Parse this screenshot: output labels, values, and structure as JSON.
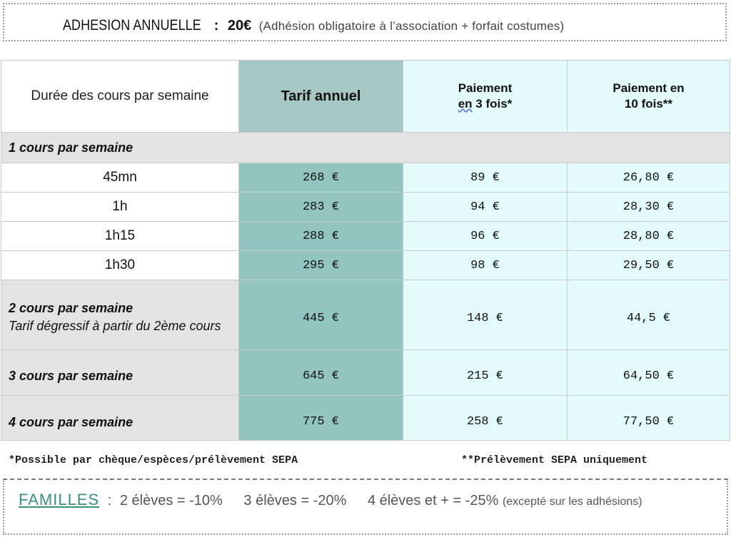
{
  "header": {
    "label": "ADHESION ANNUELLE",
    "separator": ":",
    "amount": "20€",
    "note": "(Adhésion obligatoire à l’association + forfait costumes)"
  },
  "table": {
    "columns": {
      "duration": "Durée des cours par semaine",
      "annual": "Tarif annuel",
      "pay3_line1": "Paiement",
      "pay3_pre": "en",
      "pay3_rest": " 3 fois*",
      "pay10_line1": "Paiement en",
      "pay10_line2": "10 fois**"
    },
    "section1": "1 cours par semaine",
    "rows": [
      {
        "duration": "45mn",
        "annual": "268 €",
        "pay3": "89 €",
        "pay10": "26,80 €"
      },
      {
        "duration": "1h",
        "annual": "283 €",
        "pay3": "94 €",
        "pay10": "28,30 €"
      },
      {
        "duration": "1h15",
        "annual": "288 €",
        "pay3": "96 €",
        "pay10": "28,80 €"
      },
      {
        "duration": "1h30",
        "annual": "295 €",
        "pay3": "98 €",
        "pay10": "29,50 €"
      }
    ],
    "group2": {
      "label": "2 cours par semaine",
      "sub": "Tarif dégressif à partir du 2ème cours",
      "annual": "445 €",
      "pay3": "148 €",
      "pay10": "44,5 €"
    },
    "group3": {
      "label": "3 cours par semaine",
      "annual": "645 €",
      "pay3": "215 €",
      "pay10": "64,50 €"
    },
    "group4": {
      "label": "4 cours par semaine",
      "annual": "775 €",
      "pay3": "258 €",
      "pay10": "77,50 €"
    }
  },
  "notes": {
    "left": "*Possible par chèque/espèces/prélèvement SEPA",
    "right": "**Prélèvement SEPA uniquement"
  },
  "families": {
    "title": "FAMILLES",
    "separator": ":",
    "item1": "2 élèves = -10%",
    "item2": "3 élèves = -20%",
    "item3": "4 élèves et + = -25%",
    "note": "(excepté sur les adhésions)"
  }
}
